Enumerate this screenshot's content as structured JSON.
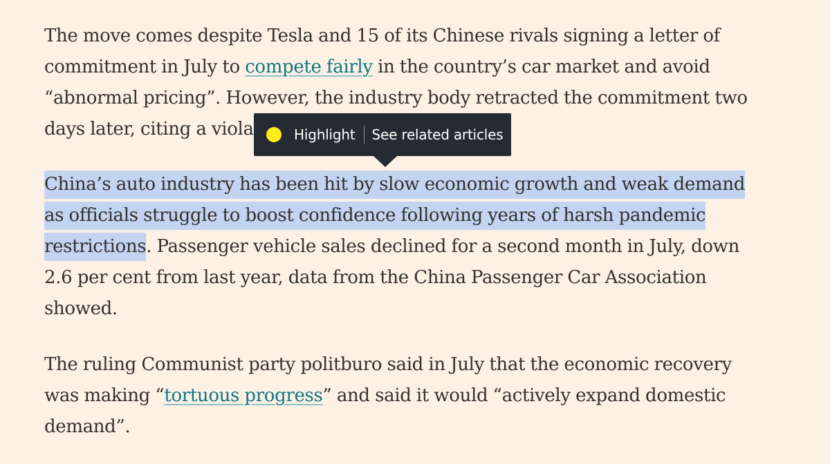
{
  "article": {
    "p1": {
      "line1": "The move comes despite Tesla and 15 of its Chinese rivals signing a letter of",
      "line2_before": "commitment in July to ",
      "line2_link": "compete fairly",
      "line2_after": " in the country’s car market and avoid",
      "line3": "“abnormal pricing”. However, the industry body retracted the commitment two",
      "line4": "days later, citing a violat"
    },
    "p2": {
      "line1_highlighted": "China’s auto industry has been hit by slow economic growth and weak demand",
      "line2_highlighted": "as officials struggle to boost confidence following years of harsh pandemic",
      "line3_highlighted": "restrictions",
      "line3_after": ". Passenger vehicle sales declined for a second month in July, down",
      "line4": "2.6 per cent from last year, data from the China Passenger Car Association",
      "line5": "showed."
    },
    "p3": {
      "line1": "The ruling Communist party politburo said in July that the economic recovery",
      "line2_before": "was making “",
      "line2_link": "tortuous progress",
      "line2_after": "” and said it would “actively expand domestic",
      "line3": "demand”."
    }
  },
  "popup": {
    "highlight_label": "Highlight",
    "related_label": "See related articles",
    "dot_color": "#ffec1a"
  },
  "colors": {
    "background": "#fdf1e6",
    "text": "#33302e",
    "link": "#0d7680",
    "selection": "#c2d4f0",
    "popup_bg": "#262a33"
  }
}
